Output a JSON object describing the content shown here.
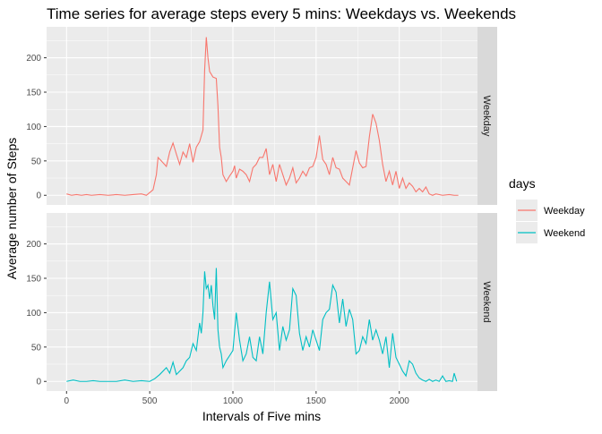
{
  "chart_data": {
    "type": "line",
    "title": "Time series for average steps every 5 mins: Weekdays vs. Weekends",
    "xlabel": "Intervals of Five mins",
    "ylabel": "Average number of Steps",
    "xlim": [
      -120,
      2470
    ],
    "ylim": [
      -14,
      245
    ],
    "x_ticks": [
      0,
      500,
      1000,
      1500,
      2000
    ],
    "x_tick_labels": [
      "0",
      "500",
      "1000",
      "1500",
      "2000"
    ],
    "y_ticks": [
      0,
      50,
      100,
      150,
      200
    ],
    "y_tick_labels": [
      "0",
      "50",
      "100",
      "150",
      "200"
    ],
    "grid": true,
    "facet_by": "days",
    "legend": {
      "title": "days",
      "position": "right",
      "entries": [
        {
          "label": "Weekday",
          "color": "#F8766D"
        },
        {
          "label": "Weekend",
          "color": "#00BFC4"
        }
      ]
    },
    "series": [
      {
        "name": "Weekday",
        "panel_label": "Weekday",
        "color": "#F8766D",
        "points": [
          [
            0,
            2
          ],
          [
            30,
            0
          ],
          [
            60,
            1
          ],
          [
            90,
            0
          ],
          [
            120,
            1
          ],
          [
            150,
            0
          ],
          [
            200,
            1
          ],
          [
            250,
            0
          ],
          [
            300,
            1
          ],
          [
            350,
            0
          ],
          [
            400,
            1
          ],
          [
            450,
            2
          ],
          [
            480,
            0
          ],
          [
            500,
            4
          ],
          [
            520,
            8
          ],
          [
            540,
            30
          ],
          [
            550,
            55
          ],
          [
            570,
            50
          ],
          [
            600,
            42
          ],
          [
            620,
            63
          ],
          [
            640,
            76
          ],
          [
            660,
            60
          ],
          [
            680,
            45
          ],
          [
            700,
            63
          ],
          [
            720,
            55
          ],
          [
            740,
            75
          ],
          [
            760,
            48
          ],
          [
            780,
            70
          ],
          [
            800,
            78
          ],
          [
            820,
            95
          ],
          [
            830,
            182
          ],
          [
            840,
            230
          ],
          [
            850,
            200
          ],
          [
            860,
            180
          ],
          [
            880,
            172
          ],
          [
            900,
            170
          ],
          [
            910,
            130
          ],
          [
            920,
            70
          ],
          [
            930,
            55
          ],
          [
            940,
            30
          ],
          [
            960,
            20
          ],
          [
            980,
            28
          ],
          [
            1000,
            35
          ],
          [
            1010,
            43
          ],
          [
            1020,
            25
          ],
          [
            1040,
            38
          ],
          [
            1060,
            35
          ],
          [
            1080,
            30
          ],
          [
            1100,
            20
          ],
          [
            1120,
            40
          ],
          [
            1140,
            45
          ],
          [
            1160,
            55
          ],
          [
            1180,
            55
          ],
          [
            1200,
            68
          ],
          [
            1220,
            30
          ],
          [
            1240,
            45
          ],
          [
            1260,
            20
          ],
          [
            1280,
            45
          ],
          [
            1300,
            30
          ],
          [
            1320,
            15
          ],
          [
            1340,
            25
          ],
          [
            1360,
            40
          ],
          [
            1380,
            18
          ],
          [
            1400,
            25
          ],
          [
            1420,
            35
          ],
          [
            1440,
            28
          ],
          [
            1460,
            40
          ],
          [
            1480,
            42
          ],
          [
            1500,
            55
          ],
          [
            1520,
            87
          ],
          [
            1540,
            52
          ],
          [
            1560,
            45
          ],
          [
            1580,
            30
          ],
          [
            1600,
            55
          ],
          [
            1620,
            40
          ],
          [
            1640,
            38
          ],
          [
            1660,
            25
          ],
          [
            1680,
            20
          ],
          [
            1700,
            15
          ],
          [
            1720,
            40
          ],
          [
            1740,
            65
          ],
          [
            1760,
            47
          ],
          [
            1780,
            40
          ],
          [
            1800,
            42
          ],
          [
            1820,
            85
          ],
          [
            1840,
            118
          ],
          [
            1860,
            105
          ],
          [
            1880,
            80
          ],
          [
            1900,
            45
          ],
          [
            1920,
            20
          ],
          [
            1940,
            35
          ],
          [
            1960,
            15
          ],
          [
            1980,
            35
          ],
          [
            2000,
            10
          ],
          [
            2020,
            25
          ],
          [
            2040,
            10
          ],
          [
            2060,
            18
          ],
          [
            2080,
            13
          ],
          [
            2100,
            5
          ],
          [
            2120,
            10
          ],
          [
            2140,
            5
          ],
          [
            2160,
            12
          ],
          [
            2180,
            2
          ],
          [
            2200,
            0
          ],
          [
            2220,
            2
          ],
          [
            2260,
            0
          ],
          [
            2300,
            1
          ],
          [
            2330,
            0
          ],
          [
            2355,
            0
          ]
        ]
      },
      {
        "name": "Weekend",
        "panel_label": "Weekend",
        "color": "#00BFC4",
        "points": [
          [
            0,
            0
          ],
          [
            40,
            2
          ],
          [
            80,
            0
          ],
          [
            120,
            0
          ],
          [
            160,
            1
          ],
          [
            200,
            0
          ],
          [
            250,
            0
          ],
          [
            300,
            0
          ],
          [
            350,
            2
          ],
          [
            400,
            0
          ],
          [
            450,
            1
          ],
          [
            500,
            0
          ],
          [
            530,
            4
          ],
          [
            560,
            10
          ],
          [
            600,
            20
          ],
          [
            620,
            12
          ],
          [
            640,
            28
          ],
          [
            660,
            10
          ],
          [
            680,
            15
          ],
          [
            700,
            20
          ],
          [
            720,
            30
          ],
          [
            740,
            35
          ],
          [
            760,
            55
          ],
          [
            780,
            45
          ],
          [
            800,
            85
          ],
          [
            810,
            70
          ],
          [
            820,
            100
          ],
          [
            830,
            160
          ],
          [
            840,
            135
          ],
          [
            850,
            140
          ],
          [
            860,
            120
          ],
          [
            870,
            140
          ],
          [
            880,
            110
          ],
          [
            890,
            90
          ],
          [
            900,
            165
          ],
          [
            910,
            75
          ],
          [
            920,
            50
          ],
          [
            930,
            40
          ],
          [
            940,
            20
          ],
          [
            960,
            30
          ],
          [
            1000,
            45
          ],
          [
            1020,
            100
          ],
          [
            1040,
            60
          ],
          [
            1060,
            30
          ],
          [
            1080,
            40
          ],
          [
            1100,
            65
          ],
          [
            1120,
            35
          ],
          [
            1140,
            30
          ],
          [
            1160,
            65
          ],
          [
            1180,
            40
          ],
          [
            1200,
            100
          ],
          [
            1220,
            145
          ],
          [
            1240,
            90
          ],
          [
            1260,
            100
          ],
          [
            1280,
            45
          ],
          [
            1300,
            80
          ],
          [
            1320,
            60
          ],
          [
            1340,
            75
          ],
          [
            1360,
            135
          ],
          [
            1380,
            125
          ],
          [
            1400,
            70
          ],
          [
            1420,
            45
          ],
          [
            1440,
            65
          ],
          [
            1460,
            50
          ],
          [
            1480,
            75
          ],
          [
            1500,
            60
          ],
          [
            1520,
            45
          ],
          [
            1540,
            90
          ],
          [
            1560,
            100
          ],
          [
            1580,
            105
          ],
          [
            1600,
            140
          ],
          [
            1620,
            130
          ],
          [
            1640,
            85
          ],
          [
            1660,
            120
          ],
          [
            1680,
            80
          ],
          [
            1700,
            105
          ],
          [
            1720,
            90
          ],
          [
            1740,
            40
          ],
          [
            1760,
            45
          ],
          [
            1780,
            65
          ],
          [
            1800,
            55
          ],
          [
            1820,
            90
          ],
          [
            1840,
            60
          ],
          [
            1860,
            75
          ],
          [
            1880,
            60
          ],
          [
            1900,
            40
          ],
          [
            1920,
            65
          ],
          [
            1940,
            20
          ],
          [
            1960,
            70
          ],
          [
            1980,
            35
          ],
          [
            2000,
            25
          ],
          [
            2020,
            15
          ],
          [
            2040,
            8
          ],
          [
            2060,
            30
          ],
          [
            2080,
            25
          ],
          [
            2100,
            12
          ],
          [
            2120,
            5
          ],
          [
            2140,
            2
          ],
          [
            2160,
            0
          ],
          [
            2180,
            3
          ],
          [
            2200,
            0
          ],
          [
            2220,
            2
          ],
          [
            2240,
            0
          ],
          [
            2260,
            8
          ],
          [
            2280,
            0
          ],
          [
            2300,
            1
          ],
          [
            2320,
            0
          ],
          [
            2330,
            12
          ],
          [
            2345,
            0
          ]
        ]
      }
    ]
  }
}
